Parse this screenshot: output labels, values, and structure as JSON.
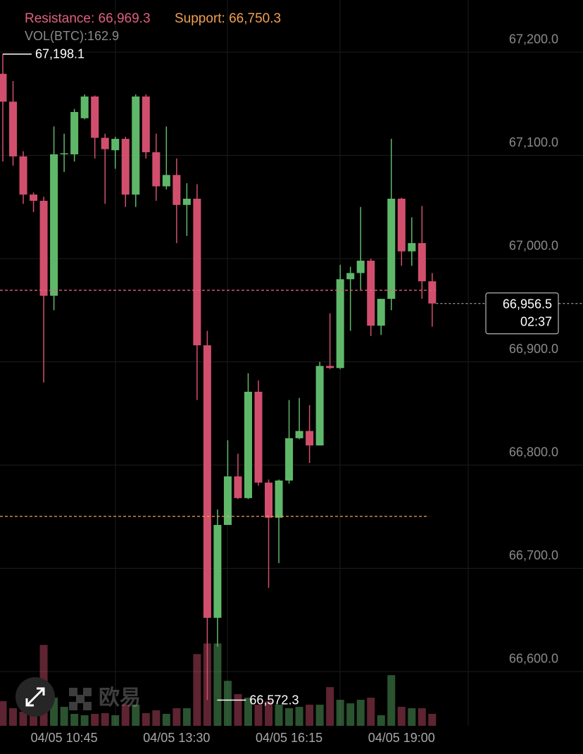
{
  "chart_data": {
    "type": "candlestick",
    "resistance": {
      "value": 66969.3,
      "label": "Resistance: 66,969.3"
    },
    "support": {
      "value": 66750.3,
      "label": "Support: 66,750.3"
    },
    "volume_label": "VOL(BTC):162.9",
    "high_label": "67,198.1",
    "low_label": "66,572.3",
    "last_price_label": "66,956.5",
    "countdown": "02:37",
    "watermark": "欧易",
    "up_color": "#5fb86a",
    "down_color": "#d14f6d",
    "grid": true,
    "ylim": [
      66547.4,
      67250.5
    ],
    "yticks": [
      {
        "value": 67200,
        "label": "67,200.0"
      },
      {
        "value": 67100,
        "label": "67,100.0"
      },
      {
        "value": 67000,
        "label": "67,000.0"
      },
      {
        "value": 66900,
        "label": "66,900.0"
      },
      {
        "value": 66800,
        "label": "66,800.0"
      },
      {
        "value": 66700,
        "label": "66,700.0"
      },
      {
        "value": 66600,
        "label": "66,600.0"
      }
    ],
    "vol_ylim": [
      0,
      1500
    ],
    "categories": [
      null,
      null,
      null,
      null,
      null,
      null,
      "04/05 10:45",
      null,
      null,
      null,
      null,
      null,
      null,
      null,
      null,
      null,
      null,
      "04/05 13:30",
      null,
      null,
      null,
      null,
      null,
      null,
      null,
      null,
      null,
      null,
      "04/05 16:15",
      null,
      null,
      null,
      null,
      null,
      null,
      null,
      null,
      null,
      null,
      "04/05 19:00",
      null,
      null,
      null
    ],
    "open": [
      67179,
      67152,
      67099,
      67062,
      67056,
      66964,
      67101,
      67101,
      67136,
      67157,
      67117,
      67105,
      67116,
      67062,
      67157,
      67103,
      67070,
      67081,
      67052,
      67058,
      66916,
      66652,
      66742,
      66789,
      66768,
      66871,
      66783,
      66749,
      66785,
      66826,
      66833,
      66819,
      66896,
      66894,
      66980,
      66986,
      66998,
      66935,
      66961,
      67058,
      67007,
      67015,
      66978
    ],
    "high": [
      67198.1,
      67172,
      67104,
      67064,
      67060,
      67128,
      67121,
      67145,
      67159,
      67158,
      67121,
      67118,
      67118,
      67159,
      67159,
      67121,
      67128,
      67097,
      67073,
      67072,
      66930,
      66757,
      66824,
      66811,
      66889,
      66882,
      66786,
      66786,
      66863,
      66865,
      66858,
      66900,
      66947,
      66994,
      66992,
      67050,
      67000,
      66961,
      67116,
      67059,
      67040,
      67051,
      66986
    ],
    "low": [
      67094,
      67090,
      67053,
      67045,
      66880,
      66950,
      67084,
      67094,
      67135,
      67097,
      67053,
      67087,
      67050,
      67050,
      67097,
      67056,
      67067,
      67015,
      67022,
      66863,
      66572.3,
      66624,
      66743,
      66767,
      66767,
      66780,
      66681,
      66705,
      66782,
      66825,
      66802,
      66819,
      66893,
      66893,
      66930,
      66970,
      66925,
      66926,
      66950,
      66993,
      66993,
      66961,
      66934
    ],
    "close": [
      67152,
      67099,
      67062,
      67056,
      66964,
      67101,
      67102,
      67142,
      67157,
      67117,
      67106,
      67116,
      67062,
      67157,
      67103,
      67070,
      67081,
      67052,
      67058,
      66916,
      66652,
      66742,
      66789,
      66768,
      66871,
      66783,
      66749,
      66785,
      66826,
      66833,
      66819,
      66896,
      66894,
      66980,
      66986,
      66998,
      66935,
      66961,
      67058,
      67007,
      67015,
      66978,
      66956.5
    ],
    "volume": [
      336,
      240,
      192,
      480,
      1104,
      384,
      259,
      163,
      144,
      163,
      173,
      144,
      288,
      288,
      173,
      211,
      163,
      240,
      240,
      979,
      1123,
      1123,
      614,
      432,
      384,
      288,
      336,
      288,
      240,
      259,
      288,
      288,
      528,
      355,
      307,
      355,
      384,
      144,
      691,
      259,
      240,
      240,
      162.9
    ]
  }
}
